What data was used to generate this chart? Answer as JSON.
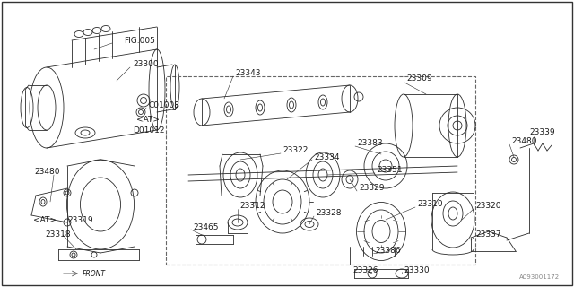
{
  "bg_color": "#ffffff",
  "line_color": "#2a2a2a",
  "label_color": "#1a1a1a",
  "dashed_border_color": "#555555",
  "watermark": "A093001172",
  "lw": 0.6,
  "label_fs": 6.5,
  "fig_width": 6.4,
  "fig_height": 3.2,
  "dpi": 100,
  "xlim": [
    0,
    640
  ],
  "ylim": [
    0,
    320
  ]
}
